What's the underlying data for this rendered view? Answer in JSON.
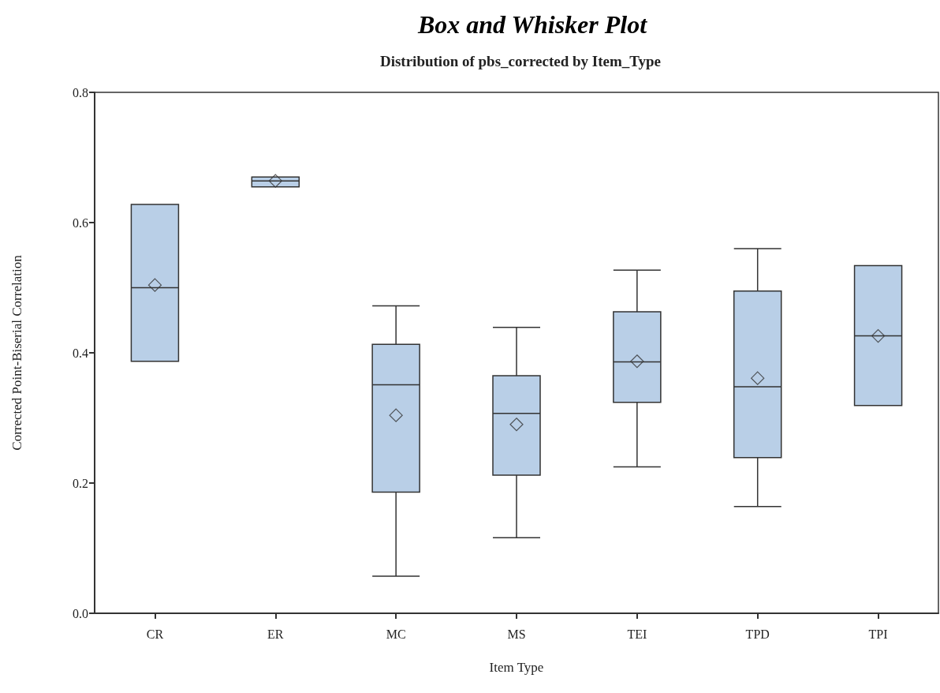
{
  "chart_data": {
    "type": "box",
    "title": "Box and Whisker Plot",
    "subtitle": "Distribution of pbs_corrected by Item_Type",
    "xlabel": "Item Type",
    "ylabel": "Corrected Point-Biserial Correlation",
    "categories": [
      "CR",
      "ER",
      "MC",
      "MS",
      "TEI",
      "TPD",
      "TPI"
    ],
    "color": "#b9cfe7",
    "marker": "diamond",
    "ylim": [
      0,
      0.8
    ],
    "yticks": [
      {
        "value": 0,
        "label": "0.0"
      },
      0.2,
      0.4,
      0.6,
      0.8
    ],
    "boxes": [
      {
        "low": 0.387,
        "q1": 0.387,
        "median": 0.5,
        "q3": 0.628,
        "high": 0.628,
        "mean": 0.504
      },
      {
        "low": 0.655,
        "q1": 0.655,
        "median": 0.664,
        "q3": 0.67,
        "high": 0.67,
        "mean": 0.664
      },
      {
        "low": 0.057,
        "q1": 0.186,
        "median": 0.351,
        "q3": 0.413,
        "high": 0.472,
        "mean": 0.304
      },
      {
        "low": 0.116,
        "q1": 0.212,
        "median": 0.307,
        "q3": 0.365,
        "high": 0.439,
        "mean": 0.29
      },
      {
        "low": 0.225,
        "q1": 0.324,
        "median": 0.386,
        "q3": 0.463,
        "high": 0.527,
        "mean": 0.387
      },
      {
        "low": 0.164,
        "q1": 0.239,
        "median": 0.348,
        "q3": 0.495,
        "high": 0.56,
        "mean": 0.361
      },
      {
        "low": 0.319,
        "q1": 0.319,
        "median": 0.426,
        "q3": 0.534,
        "high": 0.534,
        "mean": 0.426
      }
    ]
  }
}
